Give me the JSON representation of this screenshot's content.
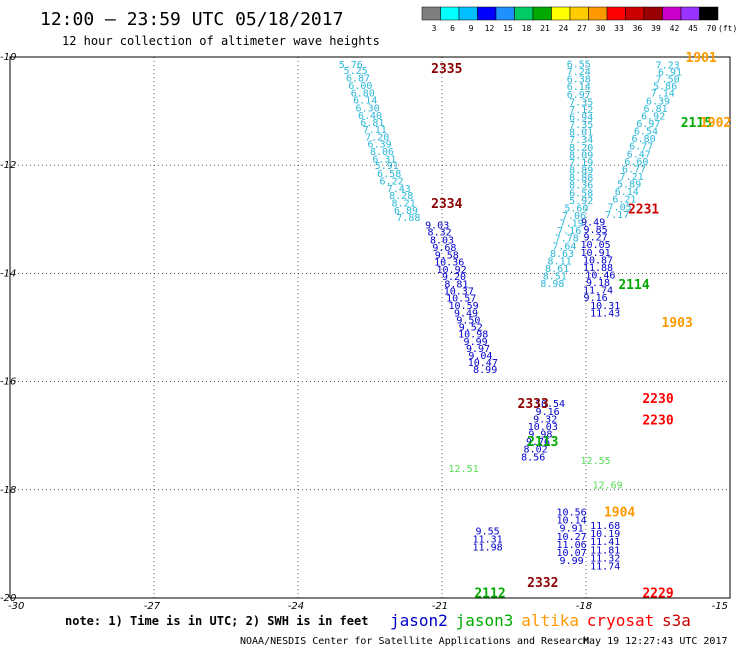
{
  "header": {
    "title": "12:00 – 23:59 UTC 05/18/2017",
    "subtitle": "12 hour collection of altimeter wave heights"
  },
  "scale": {
    "unit": "(ft)",
    "labels": [
      "3",
      "6",
      "9",
      "12",
      "15",
      "18",
      "21",
      "24",
      "27",
      "30",
      "33",
      "36",
      "39",
      "42",
      "45",
      "70"
    ],
    "colors": [
      "#7f7f7f",
      "#00ffff",
      "#00bfff",
      "#0000ff",
      "#1e90ff",
      "#00cc66",
      "#00aa00",
      "#ffff00",
      "#ffcc00",
      "#ff9900",
      "#ff0000",
      "#cc0000",
      "#990000",
      "#cc00cc",
      "#9933ff",
      "#000000"
    ]
  },
  "map": {
    "lon_ticks": [
      "-30",
      "-27",
      "-24",
      "-21",
      "-18",
      "-15"
    ],
    "lat_ticks": [
      "-10",
      "-12",
      "-14",
      "-16",
      "-18",
      "-20"
    ]
  },
  "footer": {
    "note": "note: 1) Time is in UTC; 2) SWH is in feet",
    "credit": "NOAA/NESDIS Center for Satellite Applications and Research",
    "timestamp": "May 19 12:27:43 UTC 2017",
    "satellites": [
      {
        "name": "jason2",
        "color": "#0000cc"
      },
      {
        "name": "jason3",
        "color": "#00aa00"
      },
      {
        "name": "altika",
        "color": "#ff9900"
      },
      {
        "name": "cryosat",
        "color": "#ff0000"
      },
      {
        "name": "s3a",
        "color": "#cc0000"
      }
    ]
  },
  "pass_ids": [
    {
      "text": "2335",
      "lon": -20.9,
      "lat": -10.2,
      "color": "#8b0000"
    },
    {
      "text": "2334",
      "lon": -20.9,
      "lat": -12.7,
      "color": "#8b0000"
    },
    {
      "text": "2333",
      "lon": -19.1,
      "lat": -16.4,
      "color": "#8b0000"
    },
    {
      "text": "2332",
      "lon": -18.9,
      "lat": -19.7,
      "color": "#8b0000"
    },
    {
      "text": "2231",
      "lon": -16.8,
      "lat": -12.8,
      "color": "#cc0000"
    },
    {
      "text": "2230",
      "lon": -16.5,
      "lat": -16.3,
      "color": "#ff0000"
    },
    {
      "text": "2230",
      "lon": -16.5,
      "lat": -16.7,
      "color": "#ff0000"
    },
    {
      "text": "2229",
      "lon": -16.5,
      "lat": -19.9,
      "color": "#ff0000"
    },
    {
      "text": "2115",
      "lon": -15.7,
      "lat": -11.2,
      "color": "#00aa00"
    },
    {
      "text": "2114",
      "lon": -17.0,
      "lat": -14.2,
      "color": "#00aa00"
    },
    {
      "text": "2113",
      "lon": -18.9,
      "lat": -17.1,
      "color": "#00aa00"
    },
    {
      "text": "2112",
      "lon": -20.0,
      "lat": -19.9,
      "color": "#00aa00"
    },
    {
      "text": "1901",
      "lon": -15.6,
      "lat": -10.0,
      "color": "#ff9900"
    },
    {
      "text": "1902",
      "lon": -15.3,
      "lat": -11.2,
      "color": "#ff9900"
    },
    {
      "text": "1903",
      "lon": -16.1,
      "lat": -14.9,
      "color": "#ff9900"
    },
    {
      "text": "1904",
      "lon": -17.3,
      "lat": -18.4,
      "color": "#ff9900"
    }
  ],
  "chart_data": {
    "type": "scatter",
    "lon_range": [
      -30,
      -15
    ],
    "lat_range": [
      -20,
      -10
    ],
    "tracks": [
      {
        "name": "track-2335",
        "color": "#29b8d8",
        "points": [
          {
            "lon": -22.9,
            "lat": -10.13,
            "v": "5.76"
          },
          {
            "lon": -22.8,
            "lat": -10.24,
            "v": "5.25"
          },
          {
            "lon": -22.75,
            "lat": -10.38,
            "v": "6.87"
          },
          {
            "lon": -22.7,
            "lat": -10.52,
            "v": "6.00"
          },
          {
            "lon": -22.65,
            "lat": -10.66,
            "v": "6.80"
          },
          {
            "lon": -22.6,
            "lat": -10.79,
            "v": "6.14"
          },
          {
            "lon": -22.55,
            "lat": -10.93,
            "v": "6.30"
          },
          {
            "lon": -22.5,
            "lat": -11.07,
            "v": "6.40"
          },
          {
            "lon": -22.45,
            "lat": -11.2,
            "v": "6.81"
          },
          {
            "lon": -22.4,
            "lat": -11.33,
            "v": "7.11"
          },
          {
            "lon": -22.35,
            "lat": -11.47,
            "v": "7.20"
          },
          {
            "lon": -22.3,
            "lat": -11.6,
            "v": "6.39"
          },
          {
            "lon": -22.25,
            "lat": -11.74,
            "v": "8.06"
          },
          {
            "lon": -22.2,
            "lat": -11.88,
            "v": "6.31"
          },
          {
            "lon": -22.15,
            "lat": -12.0,
            "v": "5.91"
          },
          {
            "lon": -22.1,
            "lat": -12.14,
            "v": "6.58"
          },
          {
            "lon": -22.05,
            "lat": -12.28,
            "v": "6.22"
          },
          {
            "lon": -21.9,
            "lat": -12.42,
            "v": "7.43"
          },
          {
            "lon": -21.85,
            "lat": -12.55,
            "v": "8.28"
          },
          {
            "lon": -21.8,
            "lat": -12.69,
            "v": "8.21"
          },
          {
            "lon": -21.75,
            "lat": -12.83,
            "v": "6.89"
          },
          {
            "lon": -21.7,
            "lat": -12.96,
            "v": "7.88"
          }
        ]
      },
      {
        "name": "track-2334",
        "color": "#0000cc",
        "points": [
          {
            "lon": -21.1,
            "lat": -13.1,
            "v": "9.03"
          },
          {
            "lon": -21.05,
            "lat": -13.23,
            "v": "8.32"
          },
          {
            "lon": -21.0,
            "lat": -13.37,
            "v": "8.03"
          },
          {
            "lon": -20.95,
            "lat": -13.51,
            "v": "9.68"
          },
          {
            "lon": -20.9,
            "lat": -13.65,
            "v": "9.58"
          },
          {
            "lon": -20.85,
            "lat": -13.78,
            "v": "10.36"
          },
          {
            "lon": -20.8,
            "lat": -13.92,
            "v": "10.92"
          },
          {
            "lon": -20.75,
            "lat": -14.05,
            "v": "9.20"
          },
          {
            "lon": -20.7,
            "lat": -14.19,
            "v": "8.81"
          },
          {
            "lon": -20.65,
            "lat": -14.32,
            "v": "10.37"
          },
          {
            "lon": -20.6,
            "lat": -14.45,
            "v": "10.57"
          },
          {
            "lon": -20.55,
            "lat": -14.58,
            "v": "10.59"
          },
          {
            "lon": -20.5,
            "lat": -14.72,
            "v": "9.49"
          },
          {
            "lon": -20.45,
            "lat": -14.85,
            "v": "9.50"
          },
          {
            "lon": -20.4,
            "lat": -14.98,
            "v": "9.52"
          },
          {
            "lon": -20.35,
            "lat": -15.11,
            "v": "10.98"
          },
          {
            "lon": -20.3,
            "lat": -15.25,
            "v": "9.99"
          },
          {
            "lon": -20.25,
            "lat": -15.38,
            "v": "9.97"
          },
          {
            "lon": -20.2,
            "lat": -15.51,
            "v": "9.04"
          },
          {
            "lon": -20.15,
            "lat": -15.64,
            "v": "10.47"
          },
          {
            "lon": -20.1,
            "lat": -15.77,
            "v": "8.99"
          }
        ]
      },
      {
        "name": "track-2333",
        "color": "#29b8d8",
        "points": [
          {
            "lon": -18.15,
            "lat": -10.12,
            "v": "6.55"
          },
          {
            "lon": -18.15,
            "lat": -10.26,
            "v": "7.24"
          },
          {
            "lon": -18.15,
            "lat": -10.4,
            "v": "6.38"
          },
          {
            "lon": -18.15,
            "lat": -10.54,
            "v": "6.14"
          },
          {
            "lon": -18.15,
            "lat": -10.68,
            "v": "6.97"
          },
          {
            "lon": -18.1,
            "lat": -10.82,
            "v": "7.35"
          },
          {
            "lon": -18.1,
            "lat": -10.96,
            "v": "7.12"
          },
          {
            "lon": -18.1,
            "lat": -11.1,
            "v": "6.94"
          },
          {
            "lon": -18.1,
            "lat": -11.24,
            "v": "7.35"
          },
          {
            "lon": -18.1,
            "lat": -11.38,
            "v": "8.01"
          },
          {
            "lon": -18.1,
            "lat": -11.52,
            "v": "7.34"
          },
          {
            "lon": -18.1,
            "lat": -11.66,
            "v": "8.20"
          },
          {
            "lon": -18.1,
            "lat": -11.8,
            "v": "8.09"
          },
          {
            "lon": -18.1,
            "lat": -11.94,
            "v": "7.19"
          },
          {
            "lon": -18.1,
            "lat": -12.08,
            "v": "8.89"
          },
          {
            "lon": -18.1,
            "lat": -12.22,
            "v": "8.88"
          },
          {
            "lon": -18.1,
            "lat": -12.36,
            "v": "8.36"
          },
          {
            "lon": -18.1,
            "lat": -12.5,
            "v": "6.58"
          },
          {
            "lon": -18.1,
            "lat": -12.64,
            "v": "5.92"
          },
          {
            "lon": -18.2,
            "lat": -12.78,
            "v": "5.60"
          },
          {
            "lon": -18.25,
            "lat": -12.92,
            "v": "7.06"
          },
          {
            "lon": -18.3,
            "lat": -13.06,
            "v": "7.19"
          },
          {
            "lon": -18.35,
            "lat": -13.2,
            "v": "7.16"
          },
          {
            "lon": -18.4,
            "lat": -13.34,
            "v": "7.78"
          },
          {
            "lon": -18.45,
            "lat": -13.48,
            "v": "7.64"
          },
          {
            "lon": -18.5,
            "lat": -13.62,
            "v": "8.63"
          },
          {
            "lon": -18.55,
            "lat": -13.76,
            "v": "8.11"
          },
          {
            "lon": -18.6,
            "lat": -13.9,
            "v": "8.61"
          },
          {
            "lon": -18.65,
            "lat": -14.04,
            "v": "8.51"
          },
          {
            "lon": -18.7,
            "lat": -14.18,
            "v": "8.98"
          }
        ]
      },
      {
        "name": "track-2332",
        "color": "#0000cc",
        "points": [
          {
            "lon": -18.75,
            "lat": -16.4,
            "v": "10.54"
          },
          {
            "lon": -18.8,
            "lat": -16.54,
            "v": "9.16"
          },
          {
            "lon": -18.85,
            "lat": -16.68,
            "v": "9.32"
          },
          {
            "lon": -18.9,
            "lat": -16.82,
            "v": "10.03"
          },
          {
            "lon": -18.95,
            "lat": -16.96,
            "v": "9.98"
          },
          {
            "lon": -19.0,
            "lat": -17.1,
            "v": "9.76"
          },
          {
            "lon": -19.05,
            "lat": -17.24,
            "v": "8.02"
          },
          {
            "lon": -19.1,
            "lat": -17.38,
            "v": "8.56"
          }
        ]
      },
      {
        "name": "track-2231",
        "color": "#29b8d8",
        "points": [
          {
            "lon": -16.3,
            "lat": -10.14,
            "v": "7.23"
          },
          {
            "lon": -16.25,
            "lat": -10.27,
            "v": "6.91"
          },
          {
            "lon": -16.3,
            "lat": -10.4,
            "v": "7.50"
          },
          {
            "lon": -16.35,
            "lat": -10.53,
            "v": "5.86"
          },
          {
            "lon": -16.4,
            "lat": -10.66,
            "v": "7.14"
          },
          {
            "lon": -16.5,
            "lat": -10.8,
            "v": "6.39"
          },
          {
            "lon": -16.55,
            "lat": -10.94,
            "v": "6.81"
          },
          {
            "lon": -16.6,
            "lat": -11.08,
            "v": "6.92"
          },
          {
            "lon": -16.7,
            "lat": -11.22,
            "v": "6.97"
          },
          {
            "lon": -16.75,
            "lat": -11.36,
            "v": "6.54"
          },
          {
            "lon": -16.8,
            "lat": -11.5,
            "v": "6.80"
          },
          {
            "lon": -16.85,
            "lat": -11.64,
            "v": "6.77"
          },
          {
            "lon": -16.9,
            "lat": -11.78,
            "v": "6.47"
          },
          {
            "lon": -16.95,
            "lat": -11.92,
            "v": "6.60"
          },
          {
            "lon": -17.0,
            "lat": -12.06,
            "v": "6.77"
          },
          {
            "lon": -17.05,
            "lat": -12.2,
            "v": "7.21"
          },
          {
            "lon": -17.1,
            "lat": -12.34,
            "v": "5.89"
          },
          {
            "lon": -17.15,
            "lat": -12.48,
            "v": "6.14"
          },
          {
            "lon": -17.2,
            "lat": -12.62,
            "v": "6.21"
          },
          {
            "lon": -17.3,
            "lat": -12.76,
            "v": "7.05"
          },
          {
            "lon": -17.35,
            "lat": -12.9,
            "v": "7.17"
          }
        ]
      },
      {
        "name": "track-2230",
        "color": "#0000cc",
        "points": [
          {
            "lon": -17.85,
            "lat": -13.04,
            "v": "9.49"
          },
          {
            "lon": -17.8,
            "lat": -13.18,
            "v": "9.85"
          },
          {
            "lon": -17.8,
            "lat": -13.32,
            "v": "9.27"
          },
          {
            "lon": -17.8,
            "lat": -13.46,
            "v": "10.05"
          },
          {
            "lon": -17.8,
            "lat": -13.6,
            "v": "10.91"
          },
          {
            "lon": -17.75,
            "lat": -13.74,
            "v": "10.87"
          },
          {
            "lon": -17.75,
            "lat": -13.88,
            "v": "11.88"
          },
          {
            "lon": -17.7,
            "lat": -14.02,
            "v": "10.46"
          },
          {
            "lon": -17.75,
            "lat": -14.16,
            "v": "9.18"
          },
          {
            "lon": -17.75,
            "lat": -14.3,
            "v": "11.74"
          },
          {
            "lon": -17.8,
            "lat": -14.44,
            "v": "9.16"
          },
          {
            "lon": -17.6,
            "lat": -14.58,
            "v": "10.31"
          },
          {
            "lon": -17.6,
            "lat": -14.72,
            "v": "11.43"
          }
        ]
      },
      {
        "name": "track-2229",
        "color": "#0000cc",
        "points": [
          {
            "lon": -18.3,
            "lat": -18.4,
            "v": "10.56"
          },
          {
            "lon": -18.3,
            "lat": -18.55,
            "v": "10.14"
          },
          {
            "lon": -18.3,
            "lat": -18.7,
            "v": "9.91"
          },
          {
            "lon": -18.3,
            "lat": -18.85,
            "v": "10.27"
          },
          {
            "lon": -18.3,
            "lat": -19.0,
            "v": "11.06"
          },
          {
            "lon": -18.3,
            "lat": -19.15,
            "v": "10.07"
          },
          {
            "lon": -18.3,
            "lat": -19.3,
            "v": "9.99"
          },
          {
            "lon": -17.6,
            "lat": -18.65,
            "v": "11.68"
          },
          {
            "lon": -17.6,
            "lat": -18.8,
            "v": "10.19"
          },
          {
            "lon": -17.6,
            "lat": -18.95,
            "v": "11.41"
          },
          {
            "lon": -17.6,
            "lat": -19.1,
            "v": "11.81"
          },
          {
            "lon": -17.6,
            "lat": -19.25,
            "v": "11.32"
          },
          {
            "lon": -17.6,
            "lat": -19.4,
            "v": "11.74"
          },
          {
            "lon": -20.05,
            "lat": -18.75,
            "v": "9.55"
          },
          {
            "lon": -20.05,
            "lat": -18.9,
            "v": "11.31"
          },
          {
            "lon": -20.05,
            "lat": -19.05,
            "v": "11.98"
          }
        ]
      },
      {
        "name": "track-green",
        "color": "#55dd55",
        "points": [
          {
            "lon": -17.8,
            "lat": -17.45,
            "v": "12.55"
          },
          {
            "lon": -17.55,
            "lat": -17.9,
            "v": "12.69"
          },
          {
            "lon": -20.55,
            "lat": -17.6,
            "v": "12.51"
          }
        ]
      }
    ]
  }
}
